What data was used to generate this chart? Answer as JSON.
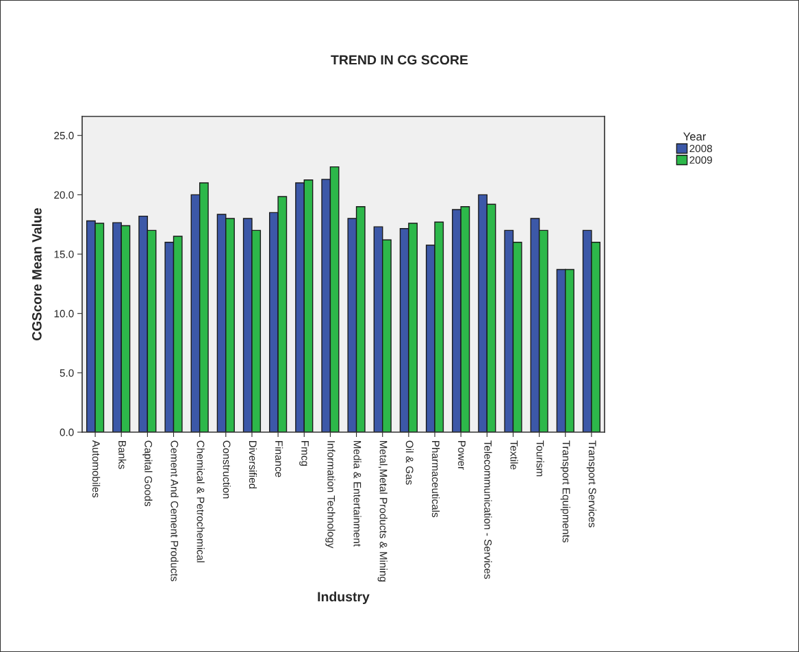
{
  "chart_data": {
    "type": "bar",
    "title": "TREND IN CG SCORE",
    "xlabel": "Industry",
    "ylabel": "CGScore Mean Value",
    "legend_title": "Year",
    "categories": [
      "Automobiles",
      "Banks",
      "Capital Goods",
      "Cement And Cement Products",
      "Chemical & Petrochemical",
      "Construction",
      "Diversified",
      "Finance",
      "Fmcg",
      "Information Technology",
      "Media & Entertainment",
      "Metal,Metal Products & Mining",
      "Oil & Gas",
      "Pharmaceuticals",
      "Power",
      "Telecommunication - Services",
      "Textile",
      "Tourism",
      "Transport Equipments",
      "Transport Services"
    ],
    "series": [
      {
        "name": "2008",
        "color": "#3c58a8",
        "values": [
          17.8,
          17.65,
          18.2,
          16.0,
          20.0,
          18.35,
          18.0,
          18.5,
          21.0,
          21.3,
          18.0,
          17.3,
          17.15,
          15.75,
          18.75,
          20.0,
          17.0,
          18.0,
          13.7,
          17.0
        ]
      },
      {
        "name": "2009",
        "color": "#2db84a",
        "values": [
          17.6,
          17.4,
          17.0,
          16.5,
          21.0,
          18.0,
          17.0,
          19.85,
          21.25,
          22.35,
          19.0,
          16.2,
          17.6,
          17.7,
          19.0,
          19.2,
          16.0,
          17.0,
          13.7,
          16.0
        ]
      }
    ],
    "ylim": [
      0,
      26.6
    ],
    "yticks": [
      {
        "value": 0,
        "label": "0.0"
      },
      {
        "value": 5,
        "label": "5.0"
      },
      {
        "value": 10,
        "label": "10.0"
      },
      {
        "value": 15,
        "label": "15.0"
      },
      {
        "value": 20,
        "label": "20.0"
      },
      {
        "value": 25,
        "label": "25.0"
      }
    ],
    "grid": false,
    "legend": "top right"
  }
}
